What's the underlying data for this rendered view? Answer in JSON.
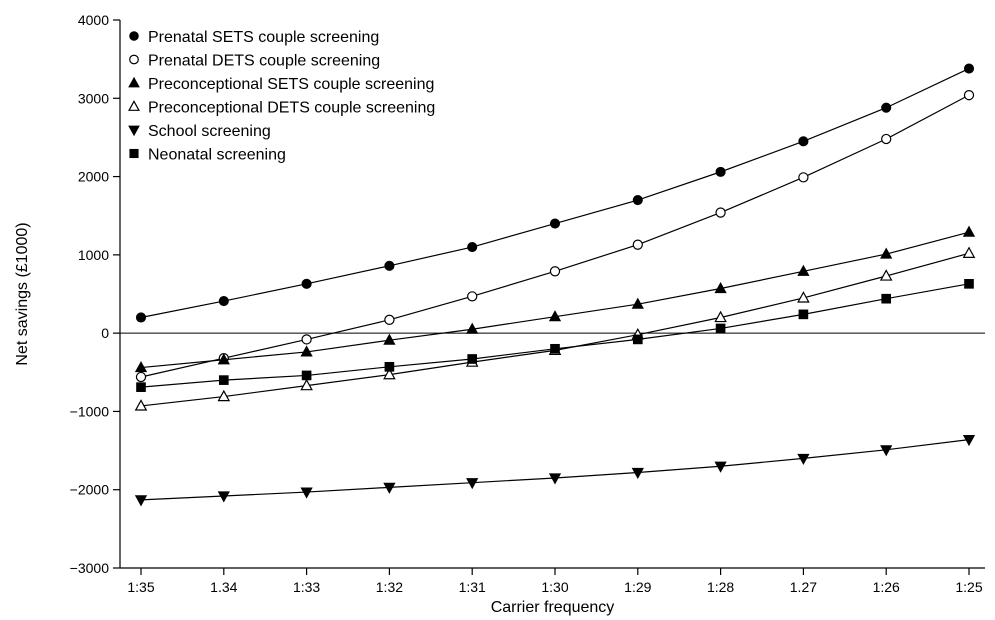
{
  "chart_data": {
    "type": "line",
    "xlabel": "Carrier frequency",
    "ylabel": "Net savings (£1000)",
    "categories": [
      "1:35",
      "1.34",
      "1:33",
      "1:32",
      "1:31",
      "1:30",
      "1:29",
      "1:28",
      "1.27",
      "1:26",
      "1:25"
    ],
    "ylim": [
      -3000,
      4000
    ],
    "yticks": [
      -3000,
      -2000,
      -1000,
      0,
      1000,
      2000,
      3000,
      4000
    ],
    "ytick_labels": [
      "−3000",
      "−2000",
      "−1000",
      "0",
      "1000",
      "2000",
      "3000",
      "4000"
    ],
    "grid": false,
    "legend_position": "top-left",
    "series": [
      {
        "name": "Prenatal SETS couple screening",
        "marker": "filled-circle",
        "values": [
          200,
          410,
          630,
          860,
          1100,
          1400,
          1700,
          2060,
          2450,
          2880,
          3380
        ]
      },
      {
        "name": "Prenatal DETS couple screening",
        "marker": "open-circle",
        "values": [
          -560,
          -320,
          -80,
          170,
          470,
          790,
          1130,
          1540,
          1990,
          2480,
          3040
        ]
      },
      {
        "name": "Preconceptional SETS couple screening",
        "marker": "filled-triangle-up",
        "values": [
          -440,
          -340,
          -240,
          -90,
          50,
          210,
          370,
          570,
          790,
          1010,
          1290
        ]
      },
      {
        "name": "Preconceptional DETS couple screening",
        "marker": "open-triangle-up",
        "values": [
          -930,
          -810,
          -670,
          -530,
          -370,
          -220,
          -20,
          200,
          450,
          730,
          1020
        ]
      },
      {
        "name": "School screening",
        "marker": "filled-triangle-down",
        "values": [
          -2130,
          -2080,
          -2030,
          -1970,
          -1910,
          -1850,
          -1780,
          -1700,
          -1600,
          -1490,
          -1360
        ]
      },
      {
        "name": "Neonatal screening",
        "marker": "filled-square",
        "values": [
          -690,
          -600,
          -540,
          -430,
          -330,
          -200,
          -80,
          60,
          240,
          440,
          630
        ]
      }
    ]
  }
}
